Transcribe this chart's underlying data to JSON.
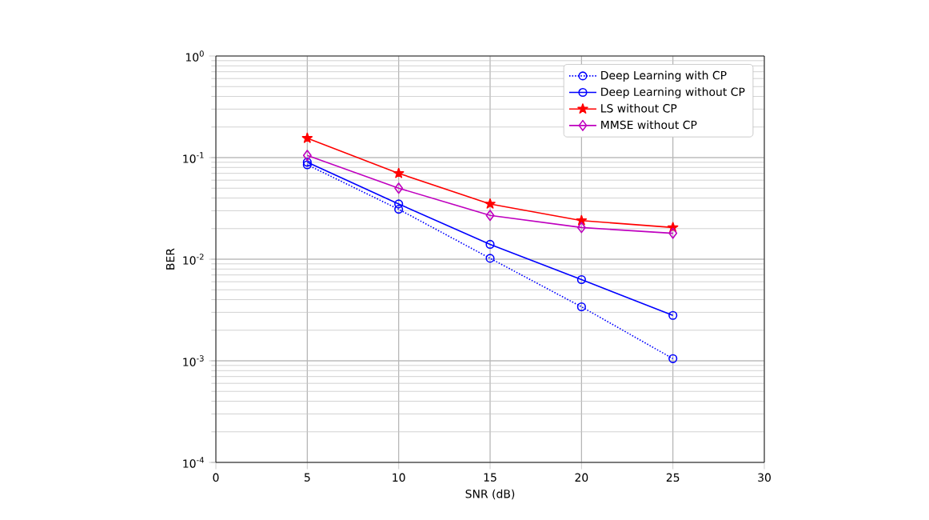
{
  "chart_data": {
    "type": "line",
    "xlabel": "SNR (dB)",
    "ylabel": "BER",
    "log": "y",
    "grid": true,
    "legend": "top right",
    "xlim": [
      0,
      30
    ],
    "xticks": [
      0,
      5,
      10,
      15,
      20,
      25,
      30
    ],
    "ylim": [
      0.0001,
      1
    ],
    "yticks": [
      {
        "value": 0.0001,
        "label": "10$^{-4}$"
      },
      {
        "value": 0.001,
        "label": "10$^{-3}$"
      },
      {
        "value": 0.01,
        "label": "10$^{-2}$"
      },
      {
        "value": 0.1,
        "label": "10$^{-1}$"
      },
      {
        "value": 1,
        "label": "10$^{0}$"
      }
    ],
    "x": [
      5,
      10,
      15,
      20,
      25
    ],
    "series": [
      {
        "name": "Deep Learning with CP",
        "color": "#0000ff",
        "marker": "circle",
        "line_style": "dotted",
        "values": [
          0.085,
          0.031,
          0.0102,
          0.0034,
          0.00105
        ]
      },
      {
        "name": "Deep Learning without CP",
        "color": "#0000ff",
        "marker": "circle",
        "line_style": "solid",
        "values": [
          0.09,
          0.035,
          0.014,
          0.0063,
          0.0028
        ]
      },
      {
        "name": "LS without CP",
        "color": "#ff0000",
        "marker": "star",
        "line_style": "solid",
        "values": [
          0.155,
          0.07,
          0.035,
          0.024,
          0.0205
        ]
      },
      {
        "name": "MMSE without CP",
        "color": "#bf00bf",
        "marker": "diamond",
        "line_style": "solid",
        "values": [
          0.105,
          0.05,
          0.027,
          0.0205,
          0.018
        ]
      }
    ]
  }
}
